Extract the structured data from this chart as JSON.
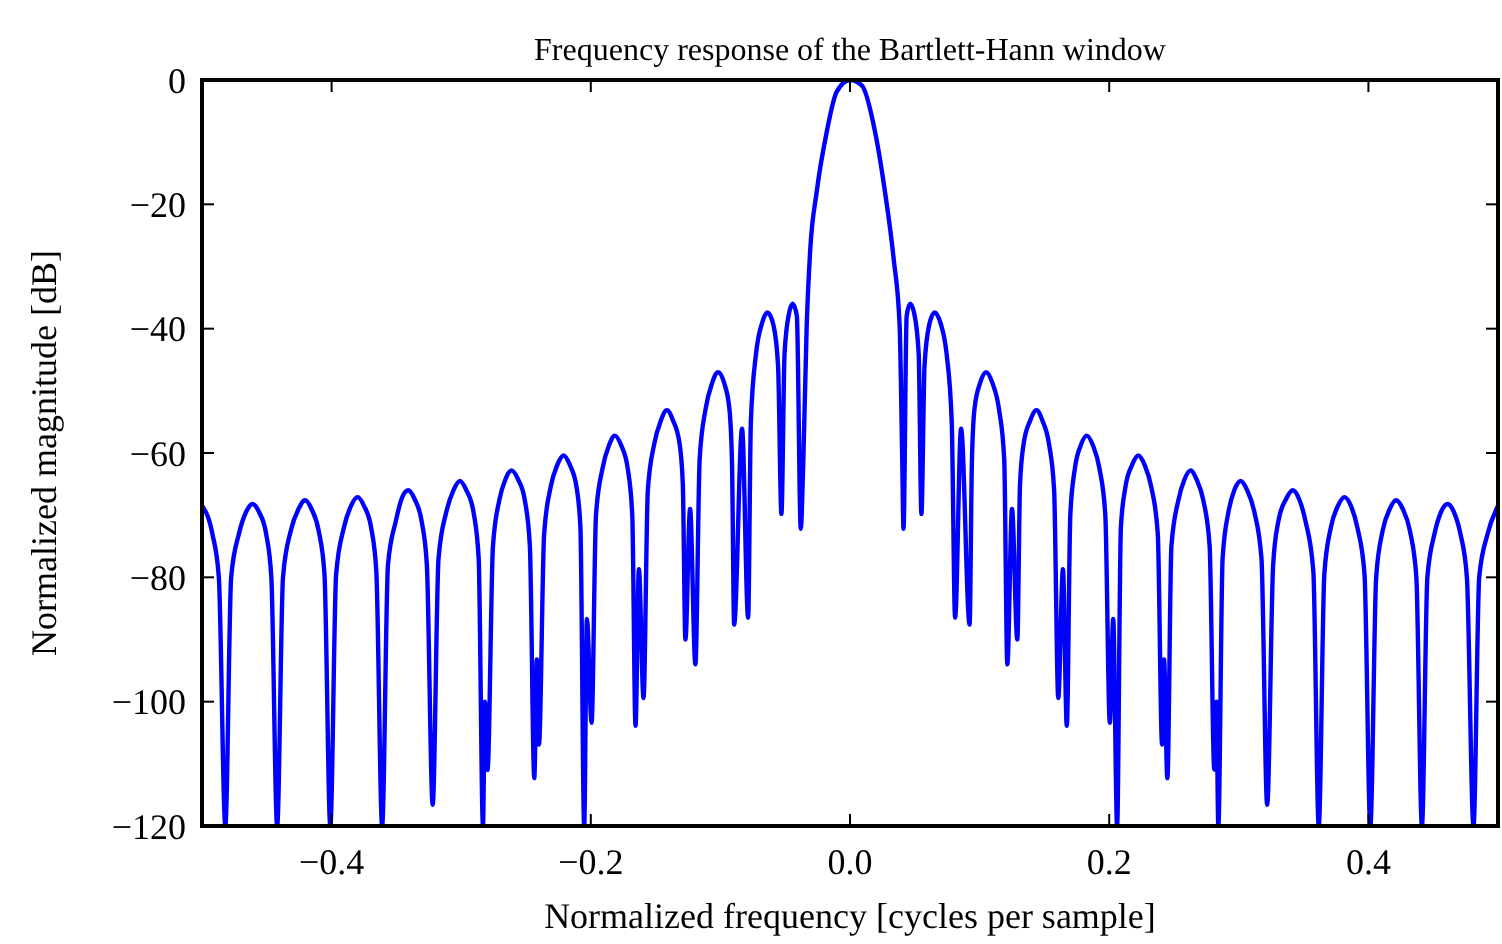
{
  "chart_data": {
    "type": "line",
    "title": "Frequency response of the Bartlett-Hann window",
    "xlabel": "Normalized frequency [cycles per sample]",
    "ylabel": "Normalized magnitude [dB]",
    "xlim": [
      -0.5,
      0.5
    ],
    "ylim": [
      -120,
      0
    ],
    "xticks": [
      {
        "value": -0.4,
        "label": "−0.4"
      },
      {
        "value": -0.2,
        "label": "−0.2"
      },
      {
        "value": 0,
        "label": "0.0"
      },
      {
        "value": 0.2,
        "label": "0.2"
      },
      {
        "value": 0.4,
        "label": "0.4"
      }
    ],
    "yticks": [
      {
        "value": 0,
        "label": "0"
      },
      {
        "value": -20,
        "label": "−20"
      },
      {
        "value": -40,
        "label": "−40"
      },
      {
        "value": -60,
        "label": "−60"
      },
      {
        "value": -80,
        "label": "−80"
      },
      {
        "value": -100,
        "label": "−100"
      },
      {
        "value": -120,
        "label": "−120"
      }
    ],
    "grid": false,
    "marker": "none",
    "line_style": "solid",
    "series": [
      {
        "color": "#0000ff",
        "x": [
          -0.5,
          -0.492,
          -0.487,
          -0.482,
          -0.4775,
          -0.4715,
          -0.466,
          -0.461,
          -0.456,
          -0.4505,
          -0.4465,
          -0.442,
          -0.4375,
          -0.4315,
          -0.4255,
          -0.4205,
          -0.4155,
          -0.41,
          -0.4055,
          -0.401,
          -0.3965,
          -0.3905,
          -0.385,
          -0.38,
          -0.375,
          -0.3695,
          -0.3655,
          -0.361,
          -0.3565,
          -0.3505,
          -0.346,
          -0.341,
          -0.336,
          -0.3305,
          -0.3265,
          -0.322,
          -0.3175,
          -0.3115,
          -0.306,
          -0.301,
          -0.296,
          -0.2905,
          -0.2865,
          -0.2832,
          -0.2817,
          -0.2797,
          -0.2755,
          -0.2705,
          -0.266,
          -0.2611,
          -0.256,
          -0.251,
          -0.247,
          -0.2436,
          -0.2416,
          -0.24,
          -0.236,
          -0.231,
          -0.226,
          -0.221,
          -0.216,
          -0.211,
          -0.208,
          -0.2051,
          -0.203,
          -0.1994,
          -0.196,
          -0.191,
          -0.186,
          -0.1814,
          -0.1765,
          -0.1715,
          -0.168,
          -0.1655,
          -0.1629,
          -0.1593,
          -0.156,
          -0.151,
          -0.146,
          -0.1413,
          -0.1365,
          -0.1315,
          -0.129,
          -0.127,
          -0.1234,
          -0.1193,
          -0.116,
          -0.1115,
          -0.1065,
          -0.1018,
          -0.097,
          -0.093,
          -0.091,
          -0.0894,
          -0.0833,
          -0.0786,
          -0.0765,
          -0.0725,
          -0.068,
          -0.0637,
          -0.059,
          -0.0555,
          -0.0529,
          -0.0505,
          -0.047,
          -0.0442,
          -0.041,
          -0.038,
          -0.036,
          -0.0334,
          -0.0308,
          -0.0257,
          -0.018,
          -0.0103,
          0,
          0.0092,
          0.0194,
          0.027,
          0.0337,
          0.0383,
          0.0403,
          0.0413,
          0.0437,
          0.0464,
          0.0495,
          0.053,
          0.0551,
          0.0575,
          0.061,
          0.0653,
          0.07,
          0.0745,
          0.0785,
          0.0811,
          0.0857,
          0.0923,
          0.094,
          0.096,
          0.1003,
          0.1051,
          0.11,
          0.115,
          0.119,
          0.1214,
          0.125,
          0.1291,
          0.1312,
          0.134,
          0.139,
          0.1439,
          0.1485,
          0.1535,
          0.1575,
          0.1607,
          0.1643,
          0.1673,
          0.17,
          0.1735,
          0.178,
          0.1827,
          0.1875,
          0.1925,
          0.197,
          0.2005,
          0.2031,
          0.2061,
          0.209,
          0.2125,
          0.2175,
          0.2224,
          0.2275,
          0.2325,
          0.2375,
          0.2408,
          0.2423,
          0.2449,
          0.248,
          0.2535,
          0.258,
          0.2628,
          0.2675,
          0.2725,
          0.2775,
          0.2811,
          0.2827,
          0.2842,
          0.2875,
          0.292,
          0.2965,
          0.3015,
          0.3065,
          0.312,
          0.3175,
          0.3219,
          0.3265,
          0.3305,
          0.3365,
          0.3418,
          0.3465,
          0.3515,
          0.3575,
          0.3617,
          0.366,
          0.371,
          0.3765,
          0.3816,
          0.3865,
          0.3915,
          0.397,
          0.4015,
          0.406,
          0.411,
          0.4165,
          0.4214,
          0.4265,
          0.432,
          0.437,
          0.4413,
          0.4455,
          0.451,
          0.456,
          0.4612,
          0.466,
          0.471,
          0.476,
          0.4811,
          0.4855,
          0.492,
          0.5
        ],
        "values": [
          -68.5,
          -73,
          -80,
          -120,
          -80,
          -73,
          -69.5,
          -68.2,
          -69.5,
          -73,
          -80,
          -120,
          -80,
          -72.5,
          -69,
          -67.6,
          -69,
          -72.5,
          -79.5,
          -120,
          -79.5,
          -72,
          -68.5,
          -67.1,
          -68.5,
          -72,
          -79,
          -120,
          -78,
          -71,
          -67.4,
          -66,
          -67.4,
          -71,
          -78,
          -116.6,
          -77,
          -69.5,
          -66,
          -64.5,
          -66,
          -69.5,
          -77,
          -120,
          -100,
          -111,
          -75,
          -67.5,
          -64.3,
          -62.8,
          -64.3,
          -67.5,
          -75,
          -112.3,
          -93.2,
          -106.9,
          -73,
          -65.5,
          -62,
          -60.4,
          -62,
          -65.5,
          -72,
          -120,
          -86.7,
          -103.4,
          -70,
          -62.5,
          -58.8,
          -57.2,
          -58.8,
          -62.5,
          -70,
          -103.9,
          -78.7,
          -99.4,
          -66,
          -58.5,
          -54.8,
          -53.1,
          -54.8,
          -58.5,
          -65,
          -90,
          -69,
          -94,
          -61,
          -53,
          -48.8,
          -47,
          -48.8,
          -53,
          -62,
          -87.6,
          -56.1,
          -86.5,
          -55,
          -44,
          -39.2,
          -37.4,
          -39.5,
          -46,
          -69.8,
          -44,
          -37.5,
          -36,
          -38,
          -72.2,
          -61,
          -39.5,
          -27.7,
          -18,
          -8.4,
          -1.9,
          0,
          -0.9,
          -8.4,
          -18,
          -28.8,
          -39.5,
          -61,
          -72.2,
          -38,
          -36,
          -37.5,
          -44,
          -69.8,
          -46,
          -39.5,
          -37.4,
          -39.2,
          -44,
          -55,
          -86.5,
          -56.1,
          -87.6,
          -62,
          -53,
          -48.8,
          -47,
          -48.8,
          -53,
          -61,
          -94,
          -69,
          -90,
          -65,
          -58.5,
          -54.8,
          -53.1,
          -54.8,
          -58.5,
          -66,
          -99.4,
          -78.7,
          -103.9,
          -70,
          -62.5,
          -58.8,
          -57.2,
          -58.8,
          -62.5,
          -70,
          -103.4,
          -86.7,
          -120,
          -72,
          -65.5,
          -62,
          -60.4,
          -62,
          -65.5,
          -73,
          -106.9,
          -93.2,
          -112.3,
          -75,
          -67.5,
          -64.3,
          -62.8,
          -64.3,
          -67.5,
          -75,
          -110.9,
          -100,
          -120,
          -77,
          -69.5,
          -66,
          -64.5,
          -66,
          -69.5,
          -77,
          -116.6,
          -78,
          -71,
          -67.4,
          -66,
          -67.4,
          -71,
          -79,
          -120,
          -79.5,
          -72,
          -68.5,
          -67.1,
          -68.5,
          -72,
          -79.5,
          -120,
          -80,
          -72.5,
          -69,
          -67.6,
          -69,
          -72.5,
          -80,
          -120,
          -80,
          -73,
          -69.5,
          -68.2,
          -69.5,
          -73,
          -80,
          -120,
          -80,
          -73,
          -68.5
        ]
      }
    ]
  }
}
